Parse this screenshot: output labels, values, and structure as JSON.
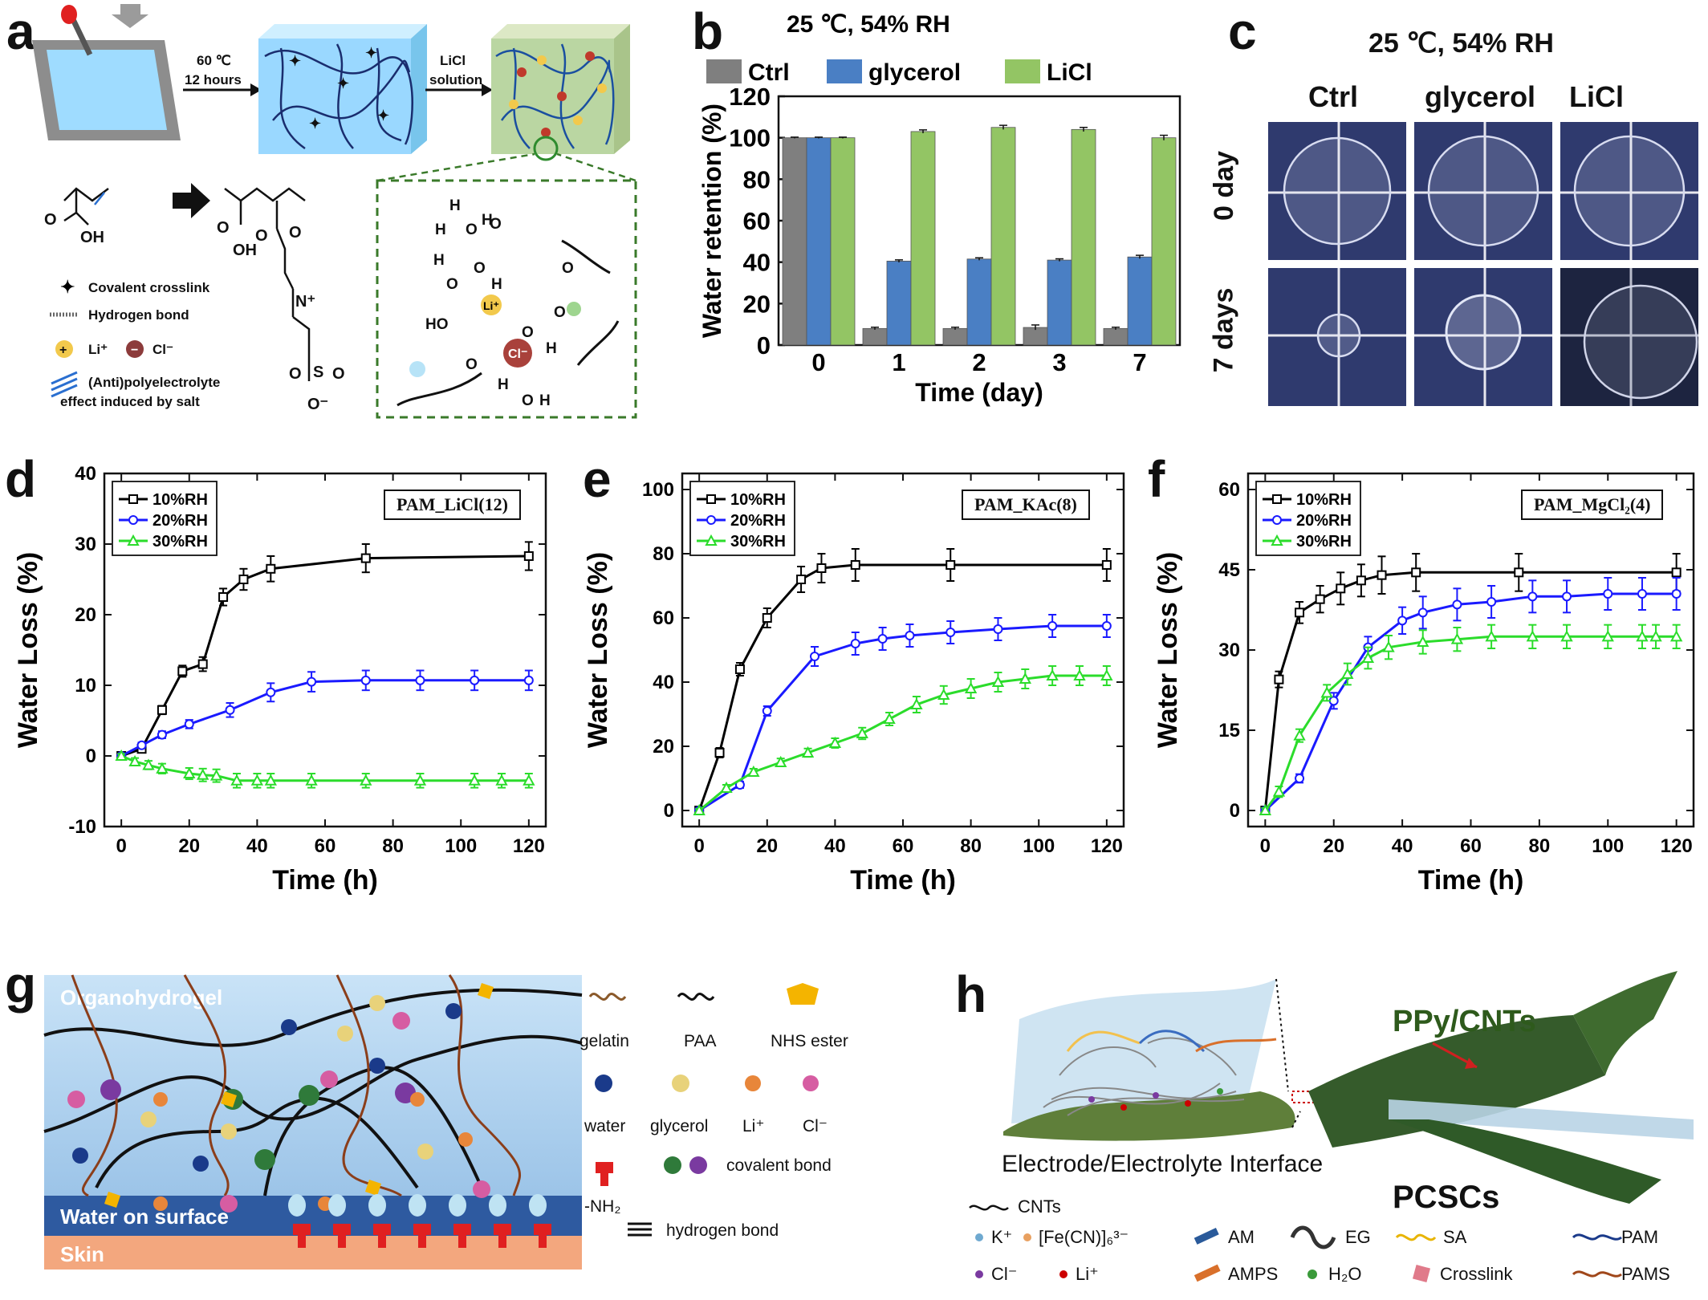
{
  "panels": {
    "a": {
      "label": "a",
      "step1": "60 ℃",
      "step1b": "12 hours",
      "step2": "LiCl",
      "step2b": "solution",
      "legend": [
        "Covalent crosslink",
        "Hydrogen bond",
        "Li⁺",
        "Cl⁻",
        "(Anti)polyelectrolyte",
        "effect induced by salt"
      ]
    },
    "b": {
      "label": "b"
    },
    "c": {
      "label": "c",
      "title": "25 ℃, 54% RH",
      "cols": [
        "Ctrl",
        "glycerol",
        "LiCl"
      ],
      "rows": [
        "0 day",
        "7 days"
      ]
    },
    "d": {
      "label": "d",
      "tag": "PAM_LiCl(12)"
    },
    "e": {
      "label": "e",
      "tag": "PAM_KAc(8)"
    },
    "f": {
      "label": "f",
      "tag": "PAM_MgCl₂(4)"
    },
    "g": {
      "label": "g",
      "layer_top": "Organohydrogel",
      "layer_mid": "Water on surface",
      "layer_bot": "Skin",
      "legend": [
        "gelatin",
        "PAA",
        "NHS ester",
        "water",
        "glycerol",
        "Li⁺",
        "Cl⁻",
        "-NH₂",
        "covalent bond",
        "hydrogen bond"
      ]
    },
    "h": {
      "label": "h",
      "title": "PPy/CNTs",
      "interface": "Electrode/Electrolyte Interface",
      "device": "PCSCs",
      "legend": [
        "CNTs",
        "K⁺",
        "[Fe(CN)]₆³⁻",
        "AM",
        "EG",
        "SA",
        "PAM",
        "Cl⁻",
        "Li⁺",
        "AMPS",
        "H₂O",
        "Crosslink",
        "PAMS"
      ]
    }
  },
  "chart_data": [
    {
      "id": "b",
      "type": "bar",
      "title": "25 ℃, 54% RH",
      "xlabel": "Time (day)",
      "ylabel": "Water retention (%)",
      "categories": [
        "0",
        "1",
        "2",
        "3",
        "7"
      ],
      "ylim": [
        0,
        120
      ],
      "yticks": [
        0,
        20,
        40,
        60,
        80,
        100,
        120
      ],
      "legend_position": "top",
      "series": [
        {
          "name": "Ctrl",
          "color": "#7f7f7f",
          "values": [
            100,
            8,
            8,
            8.5,
            8
          ],
          "errors": [
            0.3,
            0.6,
            0.6,
            1.2,
            0.6
          ]
        },
        {
          "name": "glycerol",
          "color": "#4a7fc4",
          "values": [
            100,
            40.5,
            41.5,
            41,
            42.5
          ],
          "errors": [
            0.3,
            0.6,
            0.6,
            0.6,
            0.8
          ]
        },
        {
          "name": "LiCl",
          "color": "#93c564",
          "values": [
            100,
            103,
            105,
            104,
            100
          ],
          "errors": [
            0.3,
            0.8,
            1.0,
            1.0,
            1.2
          ]
        }
      ]
    },
    {
      "id": "d",
      "type": "line",
      "xlabel": "Time (h)",
      "ylabel": "Water Loss (%)",
      "xlim": [
        -5,
        125
      ],
      "ylim": [
        -10,
        40
      ],
      "xticks": [
        0,
        20,
        40,
        60,
        80,
        100,
        120
      ],
      "yticks": [
        -10,
        0,
        10,
        20,
        30,
        40
      ],
      "legend_position": "top-left",
      "series": [
        {
          "name": "10%RH",
          "color": "#000000",
          "marker": "square",
          "x": [
            0,
            6,
            12,
            18,
            24,
            30,
            36,
            44,
            72,
            120
          ],
          "y": [
            0,
            1.0,
            6.5,
            12.0,
            13.0,
            22.5,
            25.0,
            26.5,
            28.0,
            28.3
          ],
          "err": [
            0.3,
            0.5,
            0.6,
            0.8,
            1.0,
            1.2,
            1.5,
            1.8,
            2.0,
            2.0
          ]
        },
        {
          "name": "20%RH",
          "color": "#1a1aff",
          "marker": "circle",
          "x": [
            0,
            6,
            12,
            20,
            32,
            44,
            56,
            72,
            88,
            104,
            120
          ],
          "y": [
            0,
            1.5,
            3.0,
            4.5,
            6.5,
            9.0,
            10.5,
            10.7,
            10.7,
            10.7,
            10.7
          ],
          "err": [
            0.3,
            0.4,
            0.5,
            0.6,
            1.0,
            1.3,
            1.4,
            1.4,
            1.4,
            1.4,
            1.4
          ]
        },
        {
          "name": "30%RH",
          "color": "#2bdc2b",
          "marker": "triangle",
          "x": [
            0,
            4,
            8,
            12,
            20,
            24,
            28,
            34,
            40,
            44,
            56,
            72,
            88,
            104,
            112,
            120
          ],
          "y": [
            0,
            -0.8,
            -1.3,
            -1.8,
            -2.5,
            -2.7,
            -2.8,
            -3.5,
            -3.5,
            -3.5,
            -3.5,
            -3.5,
            -3.5,
            -3.5,
            -3.5,
            -3.5
          ],
          "err": [
            0.3,
            0.5,
            0.6,
            0.7,
            0.8,
            0.9,
            0.9,
            1.0,
            1.0,
            1.0,
            1.0,
            1.0,
            1.0,
            1.0,
            1.0,
            1.0
          ]
        }
      ]
    },
    {
      "id": "e",
      "type": "line",
      "xlabel": "Time (h)",
      "ylabel": "Water Loss (%)",
      "xlim": [
        -5,
        125
      ],
      "ylim": [
        -5,
        105
      ],
      "xticks": [
        0,
        20,
        40,
        60,
        80,
        100,
        120
      ],
      "yticks": [
        0,
        20,
        40,
        60,
        80,
        100
      ],
      "legend_position": "top-left",
      "series": [
        {
          "name": "10%RH",
          "color": "#000000",
          "marker": "square",
          "x": [
            0,
            6,
            12,
            20,
            30,
            36,
            46,
            74,
            120
          ],
          "y": [
            0,
            18,
            44,
            60,
            72,
            75.5,
            76.5,
            76.5,
            76.5
          ],
          "err": [
            0.5,
            1.5,
            2.0,
            3.0,
            4.0,
            4.5,
            5.0,
            5.0,
            5.0
          ]
        },
        {
          "name": "20%RH",
          "color": "#1a1aff",
          "marker": "circle",
          "x": [
            0,
            12,
            20,
            34,
            46,
            54,
            62,
            74,
            88,
            104,
            120
          ],
          "y": [
            0,
            8,
            31,
            48,
            52,
            53.5,
            54.5,
            55.5,
            56.5,
            57.5,
            57.5
          ],
          "err": [
            0.5,
            1.0,
            1.5,
            3.0,
            3.5,
            3.5,
            3.5,
            3.5,
            3.5,
            3.5,
            3.5
          ]
        },
        {
          "name": "30%RH",
          "color": "#2bdc2b",
          "marker": "triangle",
          "x": [
            0,
            8,
            16,
            24,
            32,
            40,
            48,
            56,
            64,
            72,
            80,
            88,
            96,
            104,
            112,
            120
          ],
          "y": [
            0,
            7,
            12,
            15,
            18,
            21,
            24,
            28.5,
            33,
            36,
            38,
            40,
            41,
            42,
            42,
            42
          ],
          "err": [
            0.5,
            1.0,
            1.0,
            1.2,
            1.3,
            1.5,
            1.8,
            2.0,
            2.5,
            2.8,
            3.0,
            3.0,
            3.0,
            3.0,
            3.0,
            3.0
          ]
        }
      ]
    },
    {
      "id": "f",
      "type": "line",
      "xlabel": "Time (h)",
      "ylabel": "Water Loss (%)",
      "xlim": [
        -5,
        125
      ],
      "ylim": [
        -3,
        63
      ],
      "xticks": [
        0,
        20,
        40,
        60,
        80,
        100,
        120
      ],
      "yticks": [
        0,
        15,
        30,
        45,
        60
      ],
      "legend_position": "top-left",
      "series": [
        {
          "name": "10%RH",
          "color": "#000000",
          "marker": "square",
          "x": [
            0,
            4,
            10,
            16,
            22,
            28,
            34,
            44,
            74,
            120
          ],
          "y": [
            0,
            24.5,
            37,
            39.5,
            41.5,
            43,
            44,
            44.5,
            44.5,
            44.5
          ],
          "err": [
            0.5,
            1.5,
            2.0,
            2.5,
            3.0,
            3.0,
            3.5,
            3.5,
            3.5,
            3.5
          ]
        },
        {
          "name": "20%RH",
          "color": "#1a1aff",
          "marker": "circle",
          "x": [
            0,
            10,
            20,
            30,
            40,
            46,
            56,
            66,
            78,
            88,
            100,
            110,
            120
          ],
          "y": [
            0,
            6,
            20.5,
            30.5,
            35.5,
            37,
            38.5,
            39,
            40,
            40,
            40.5,
            40.5,
            40.5
          ],
          "err": [
            0.5,
            0.8,
            1.5,
            2.0,
            2.5,
            3.0,
            3.0,
            3.0,
            3.0,
            3.0,
            3.0,
            3.0,
            3.0
          ]
        },
        {
          "name": "30%RH",
          "color": "#2bdc2b",
          "marker": "triangle",
          "x": [
            0,
            4,
            10,
            18,
            24,
            30,
            36,
            46,
            56,
            66,
            78,
            88,
            100,
            110,
            114,
            120
          ],
          "y": [
            0,
            3.5,
            14,
            22,
            25.5,
            28.5,
            30.5,
            31.5,
            32,
            32.5,
            32.5,
            32.5,
            32.5,
            32.5,
            32.5,
            32.5
          ],
          "err": [
            0.5,
            1.0,
            1.2,
            1.5,
            2.0,
            2.0,
            2.2,
            2.2,
            2.2,
            2.2,
            2.2,
            2.2,
            2.2,
            2.2,
            2.2,
            2.2
          ]
        }
      ]
    }
  ]
}
